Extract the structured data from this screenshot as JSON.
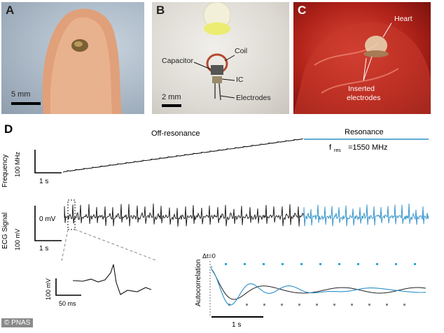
{
  "panel_a": {
    "label": "A",
    "scale_bar": "5 mm"
  },
  "panel_b": {
    "label": "B",
    "scale_bar": "2 mm",
    "annotations": {
      "capacitor": "Capacitor",
      "coil": "Coil",
      "ic": "IC",
      "electrodes": "Electrodes"
    }
  },
  "panel_c": {
    "label": "C",
    "annotations": {
      "heart": "Heart",
      "inserted_electrodes_1": "Inserted",
      "inserted_electrodes_2": "electrodes"
    }
  },
  "panel_d": {
    "label": "D",
    "off_resonance": "Off-resonance",
    "resonance": "Resonance",
    "f_res_symbol": "f",
    "f_res_sub": "res",
    "f_res_value": "=1550 MHz",
    "frequency_axis": {
      "label": "Frequency",
      "scale_y": "100 MHz",
      "scale_x": "1 s"
    },
    "ecg_axis": {
      "label": "ECG Signal",
      "zero": "0 mV",
      "scale_y": "100 mV",
      "scale_x": "1 s"
    },
    "inset": {
      "scale_y": "100 mV",
      "scale_x": "50 ms"
    },
    "autocorr": {
      "ylabel": "Autocorrelation",
      "dt_label": "Δt=0",
      "scale_x": "1 s"
    },
    "colors": {
      "off_resonance": "#111111",
      "resonance": "#2a8fc8",
      "marker_resonance": "#29a6e0",
      "marker_off": "#8c8c8c"
    }
  },
  "credit": "© PNAS"
}
